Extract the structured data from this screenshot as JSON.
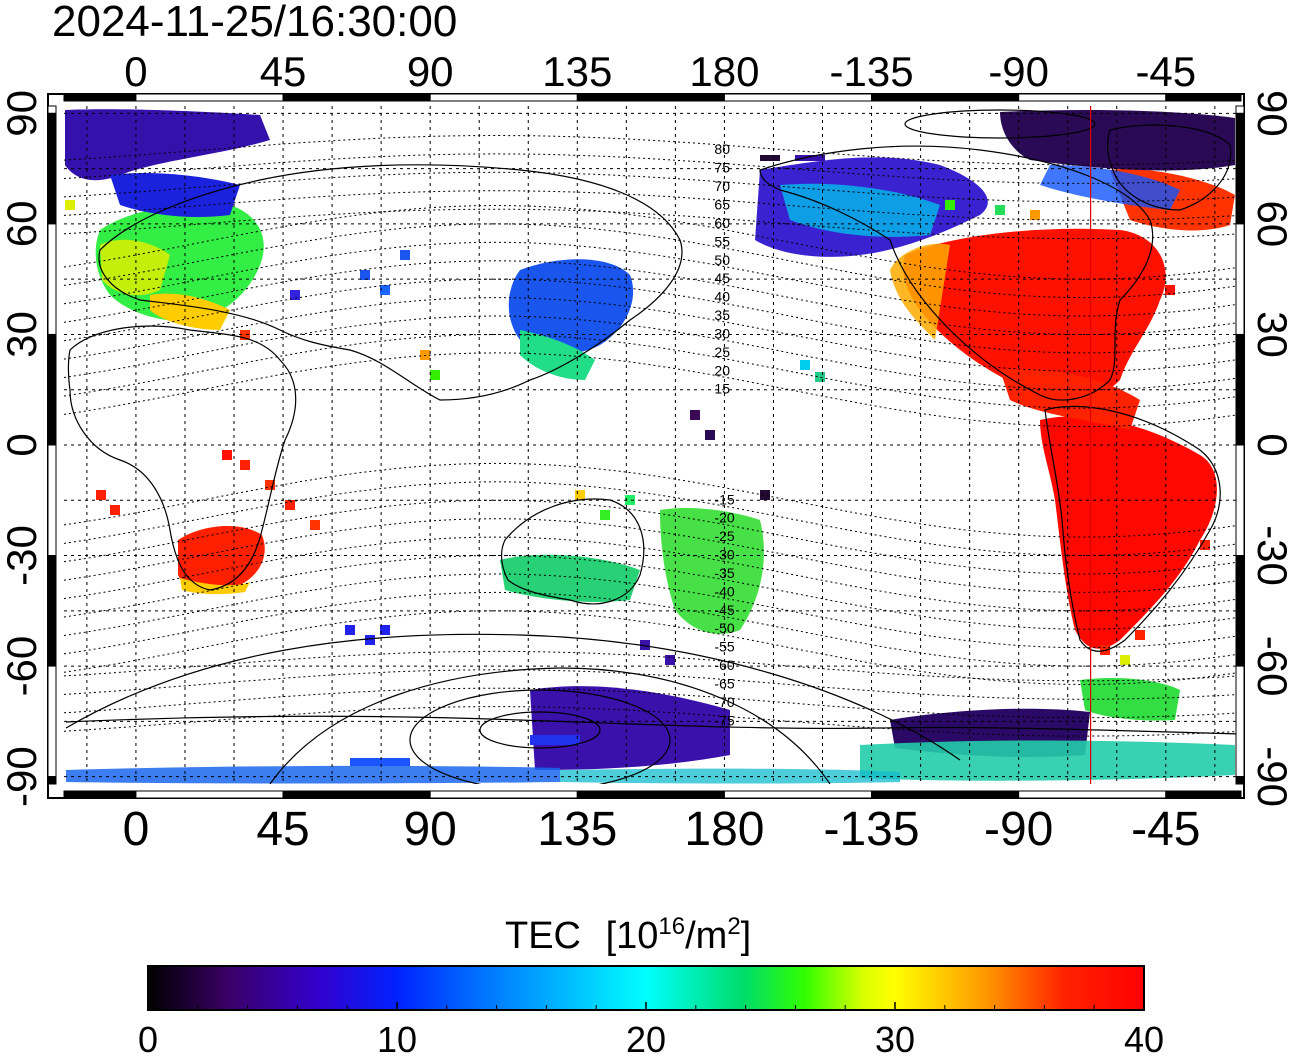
{
  "timestamp": "2024-11-25/16:30:00",
  "map": {
    "lon_ticks": [
      0,
      45,
      90,
      135,
      180,
      -135,
      -90,
      -45
    ],
    "lon_tick_labels": [
      "0",
      "45",
      "90",
      "135",
      "180",
      "-135",
      "-90",
      "-45"
    ],
    "lat_ticks": [
      90,
      60,
      30,
      0,
      -30,
      -60,
      -90
    ],
    "lat_tick_labels": [
      "90",
      "60",
      "30",
      "0",
      "-30",
      "-60",
      "-90"
    ],
    "lon_range": [
      -22,
      338
    ],
    "lat_range": [
      -92,
      92
    ],
    "terminator_lon": -68,
    "magnetic_lat_labels": [
      "80",
      "75",
      "70",
      "65",
      "60",
      "55",
      "50",
      "45",
      "40",
      "35",
      "30",
      "25",
      "20",
      "15",
      "-15",
      "-20",
      "-25",
      "-30",
      "-35",
      "-40",
      "-45",
      "-50",
      "-55",
      "-60",
      "-65",
      "-70",
      "-75"
    ]
  },
  "colorbar": {
    "title": "TEC",
    "unit_base": "[10",
    "unit_exp": "16",
    "unit_mid": "/m",
    "unit_exp2": "2",
    "unit_end": "]",
    "min": 0,
    "max": 40,
    "tick_values": [
      0,
      10,
      20,
      30,
      40
    ],
    "tick_labels": [
      "0",
      "10",
      "20",
      "30",
      "40"
    ],
    "colors": [
      "#000000",
      "#3a0066",
      "#3300cc",
      "#0022ff",
      "#0077ff",
      "#00ffff",
      "#00dd66",
      "#33ff00",
      "#ddff00",
      "#ffff00",
      "#ff9900",
      "#ff2200",
      "#ff0000"
    ]
  }
}
